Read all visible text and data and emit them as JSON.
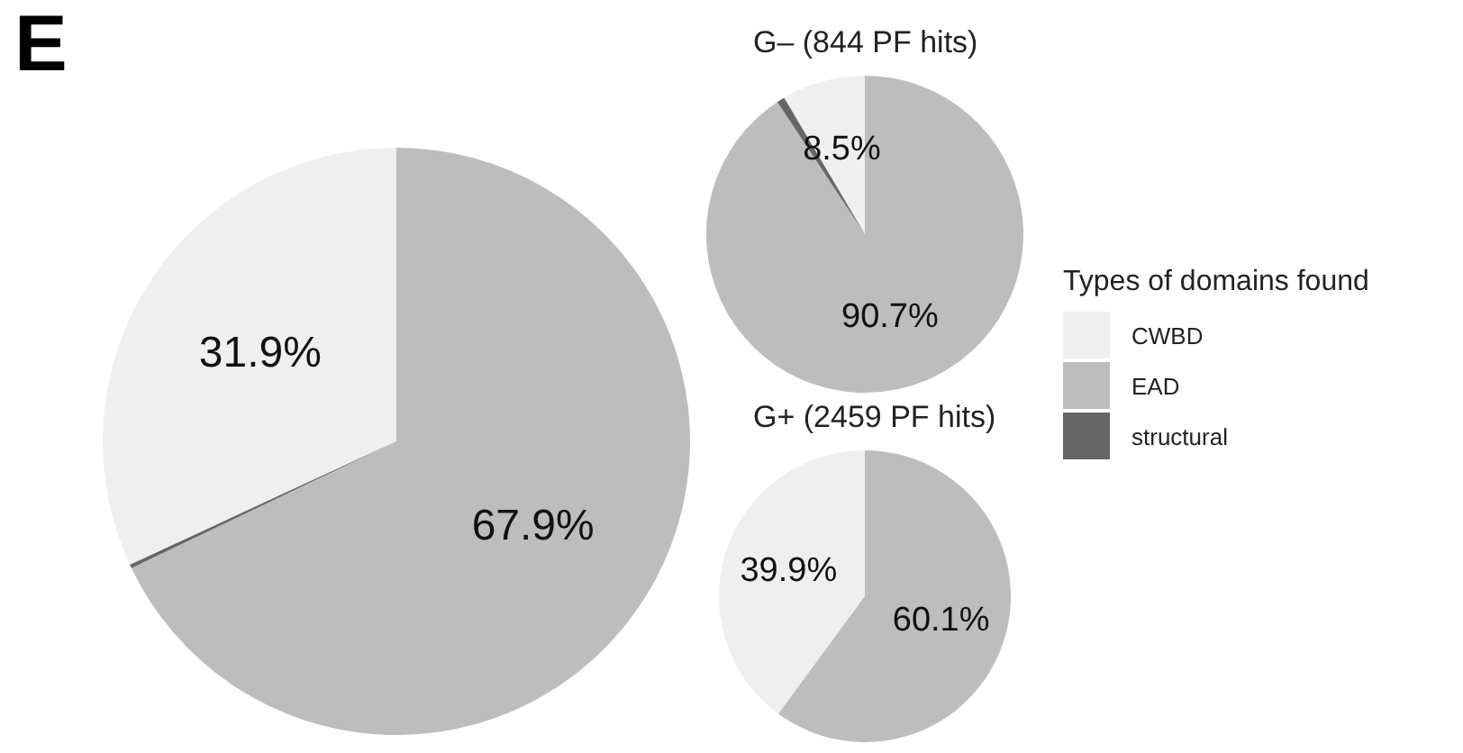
{
  "chart_data": [
    {
      "type": "pie",
      "annotations": [
        "E"
      ],
      "categories": [
        "CWBD",
        "EAD",
        "structural"
      ],
      "values": [
        31.9,
        67.9,
        0.2
      ],
      "value_labels": [
        "31.9%",
        "67.9%",
        null
      ],
      "colors": [
        "#efefef",
        "#bdbdbd",
        "#666666"
      ],
      "legend": "right",
      "legend_title": "Types of domains found"
    },
    {
      "type": "pie",
      "title": "G– (844 PF hits)",
      "categories": [
        null,
        null,
        null
      ],
      "values": [
        8.5,
        90.7,
        0.8
      ],
      "value_labels": [
        "8.5%",
        "90.7%",
        null
      ],
      "colors": [
        "#efefef",
        "#bdbdbd",
        "#666666"
      ]
    },
    {
      "type": "pie",
      "title": "G+ (2459 PF hits)",
      "categories": [
        null,
        null,
        null
      ],
      "values": [
        39.9,
        60.1,
        0
      ],
      "value_labels": [
        "39.9%",
        "60.1%",
        null
      ],
      "colors": [
        "#efefef",
        "#bdbdbd",
        "#666666"
      ]
    }
  ]
}
